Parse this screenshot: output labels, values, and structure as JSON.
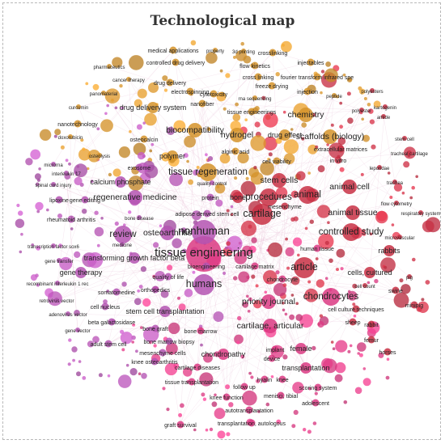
{
  "title": "Technological map",
  "colors": {
    "orange": "#e8a02e",
    "magenta": "#c45ac2",
    "red": "#d9344a",
    "pink": "#ee3f8e",
    "edge": "#e6b9d2",
    "label": "#222222"
  },
  "terms": [
    {
      "label": "tissue engineering",
      "cluster": "pink",
      "weight": 10
    },
    {
      "label": "nonhuman",
      "cluster": "magenta",
      "weight": 8
    },
    {
      "label": "humans",
      "cluster": "magenta",
      "weight": 7
    },
    {
      "label": "article",
      "cluster": "red",
      "weight": 7
    },
    {
      "label": "cartilage",
      "cluster": "red",
      "weight": 7
    },
    {
      "label": "animal",
      "cluster": "red",
      "weight": 6
    },
    {
      "label": "procedures",
      "cluster": "red",
      "weight": 6
    },
    {
      "label": "tissue regeneration",
      "cluster": "orange",
      "weight": 6
    },
    {
      "label": "controlled study",
      "cluster": "red",
      "weight": 6
    },
    {
      "label": "chondrocytes",
      "cluster": "pink",
      "weight": 6
    },
    {
      "label": "review",
      "cluster": "magenta",
      "weight": 6
    },
    {
      "label": "osteoarthritis",
      "cluster": "magenta",
      "weight": 5
    },
    {
      "label": "stem cells",
      "cluster": "red",
      "weight": 5
    },
    {
      "label": "animal cell",
      "cluster": "red",
      "weight": 5
    },
    {
      "label": "animal tissue",
      "cluster": "red",
      "weight": 5
    },
    {
      "label": "chemistry",
      "cluster": "orange",
      "weight": 5
    },
    {
      "label": "hydrogel",
      "cluster": "orange",
      "weight": 5
    },
    {
      "label": "biocompatibility",
      "cluster": "orange",
      "weight": 5
    },
    {
      "label": "scaffolds (biology)",
      "cluster": "orange",
      "weight": 5
    },
    {
      "label": "drug effect",
      "cluster": "orange",
      "weight": 4
    },
    {
      "label": "regenerative medicine",
      "cluster": "magenta",
      "weight": 5
    },
    {
      "label": "priority journal",
      "cluster": "pink",
      "weight": 5
    },
    {
      "label": "cartilage, articular",
      "cluster": "pink",
      "weight": 5
    },
    {
      "label": "female",
      "cluster": "pink",
      "weight": 4
    },
    {
      "label": "chondropathy",
      "cluster": "pink",
      "weight": 4
    },
    {
      "label": "transplantation",
      "cluster": "pink",
      "weight": 4
    },
    {
      "label": "rabbits",
      "cluster": "red",
      "weight": 4
    },
    {
      "label": "cells, cultured",
      "cluster": "red",
      "weight": 4
    },
    {
      "label": "drug delivery system",
      "cluster": "orange",
      "weight": 4
    },
    {
      "label": "bone",
      "cluster": "red",
      "weight": 4
    },
    {
      "label": "gene therapy",
      "cluster": "magenta",
      "weight": 4
    },
    {
      "label": "transforming growth factor beta",
      "cluster": "magenta",
      "weight": 4
    },
    {
      "label": "stem cell transplantation",
      "cluster": "magenta",
      "weight": 4
    },
    {
      "label": "polymer",
      "cluster": "orange",
      "weight": 4
    },
    {
      "label": "cell viability",
      "cluster": "orange",
      "weight": 3
    },
    {
      "label": "calcium phosphate",
      "cluster": "magenta",
      "weight": 4
    },
    {
      "label": "bone marrow",
      "cluster": "pink",
      "weight": 3
    },
    {
      "label": "cartilage diseases",
      "cluster": "pink",
      "weight": 3
    },
    {
      "label": "follow up",
      "cluster": "pink",
      "weight": 3
    },
    {
      "label": "scoring system",
      "cluster": "pink",
      "weight": 3
    },
    {
      "label": "autotransplantation",
      "cluster": "pink",
      "weight": 3
    },
    {
      "label": "transplantation, autologous",
      "cluster": "pink",
      "weight": 3
    },
    {
      "label": "menisci, tibial",
      "cluster": "pink",
      "weight": 3
    },
    {
      "label": "implant",
      "cluster": "pink",
      "weight": 3
    },
    {
      "label": "human tissue",
      "cluster": "pink",
      "weight": 3
    },
    {
      "label": "quality of life",
      "cluster": "magenta",
      "weight": 3
    },
    {
      "label": "orthopedics",
      "cluster": "magenta",
      "weight": 3
    },
    {
      "label": "bone graft",
      "cluster": "magenta",
      "weight": 3
    },
    {
      "label": "cell culture techniques",
      "cluster": "red",
      "weight": 3
    },
    {
      "label": "sheep",
      "cluster": "red",
      "weight": 3
    },
    {
      "label": "rabbit",
      "cluster": "red",
      "weight": 3
    },
    {
      "label": "swine",
      "cluster": "red",
      "weight": 3
    },
    {
      "label": "minipig",
      "cluster": "red",
      "weight": 3
    },
    {
      "label": "horses",
      "cluster": "red",
      "weight": 3
    },
    {
      "label": "femur",
      "cluster": "red",
      "weight": 3
    },
    {
      "label": "exosome",
      "cluster": "magenta",
      "weight": 3
    },
    {
      "label": "osteocalcin",
      "cluster": "orange",
      "weight": 3
    },
    {
      "label": "alginic acid",
      "cluster": "orange",
      "weight": 3
    },
    {
      "label": "nanotechnology",
      "cluster": "orange",
      "weight": 3
    },
    {
      "label": "electrospinning",
      "cluster": "orange",
      "weight": 3
    },
    {
      "label": "drug delivery",
      "cluster": "orange",
      "weight": 3
    },
    {
      "label": "controlled drug delivery",
      "cluster": "orange",
      "weight": 3
    },
    {
      "label": "medical applications",
      "cluster": "orange",
      "weight": 3
    },
    {
      "label": "crosslinking",
      "cluster": "orange",
      "weight": 3
    },
    {
      "label": "cross linking",
      "cluster": "orange",
      "weight": 3
    },
    {
      "label": "flow kinetics",
      "cluster": "orange",
      "weight": 3
    },
    {
      "label": "fourier transform infrared spe",
      "cluster": "orange",
      "weight": 3
    },
    {
      "label": "injectables",
      "cluster": "orange",
      "weight": 3
    },
    {
      "label": "freeze drying",
      "cluster": "orange",
      "weight": 3
    },
    {
      "label": "injection",
      "cluster": "orange",
      "weight": 3
    },
    {
      "label": "cytotoxicity",
      "cluster": "orange",
      "weight": 3
    },
    {
      "label": "tissue engineerings",
      "cluster": "orange",
      "weight": 3
    },
    {
      "label": "nanofiber",
      "cluster": "orange",
      "weight": 3
    },
    {
      "label": "extracellular matrices",
      "cluster": "red",
      "weight": 3
    },
    {
      "label": "in vitro",
      "cluster": "red",
      "weight": 3
    },
    {
      "label": "mesenchyme",
      "cluster": "red",
      "weight": 3
    },
    {
      "label": "cartilage matrix",
      "cluster": "pink",
      "weight": 3
    },
    {
      "label": "chondrocyte",
      "cluster": "pink",
      "weight": 3
    },
    {
      "label": "bioengineering",
      "cluster": "magenta",
      "weight": 3
    },
    {
      "label": "adipose derived stem cell",
      "cluster": "magenta",
      "weight": 3
    },
    {
      "label": "protein",
      "cluster": "magenta",
      "weight": 3
    },
    {
      "label": "rheumatoid arthritis",
      "cluster": "magenta",
      "weight": 3
    },
    {
      "label": "lipoxine",
      "cluster": "magenta",
      "weight": 3
    },
    {
      "label": "gene editing",
      "cluster": "magenta",
      "weight": 3
    },
    {
      "label": "somatomedine",
      "cluster": "magenta",
      "weight": 3
    },
    {
      "label": "cell nucleus",
      "cluster": "magenta",
      "weight": 3
    },
    {
      "label": "beta galactosidase",
      "cluster": "magenta",
      "weight": 3
    },
    {
      "label": "adult stem cell",
      "cluster": "magenta",
      "weight": 3
    },
    {
      "label": "mesenchyme cells",
      "cluster": "magenta",
      "weight": 3
    },
    {
      "label": "knee osteoarthritis",
      "cluster": "magenta",
      "weight": 3
    },
    {
      "label": "bone marrow biopsy",
      "cluster": "magenta",
      "weight": 3
    },
    {
      "label": "knee function",
      "cluster": "pink",
      "weight": 3
    },
    {
      "label": "graft survival",
      "cluster": "pink",
      "weight": 3
    },
    {
      "label": "tissue transplantation",
      "cluster": "pink",
      "weight": 3
    },
    {
      "label": "adolescent",
      "cluster": "pink",
      "weight": 3
    },
    {
      "label": "knee",
      "cluster": "pink",
      "weight": 3
    },
    {
      "label": "hyalin",
      "cluster": "pink",
      "weight": 3
    },
    {
      "label": "device",
      "cluster": "pink",
      "weight": 3
    },
    {
      "label": "pharmaceutics",
      "cluster": "orange",
      "weight": 2
    },
    {
      "label": "cancer therapy",
      "cluster": "orange",
      "weight": 2
    },
    {
      "label": "panomaterial",
      "cluster": "orange",
      "weight": 2
    },
    {
      "label": "curcumin",
      "cluster": "orange",
      "weight": 2
    },
    {
      "label": "doxorubicin",
      "cluster": "orange",
      "weight": 2
    },
    {
      "label": "property",
      "cluster": "orange",
      "weight": 2
    },
    {
      "label": "3d printing",
      "cluster": "orange",
      "weight": 2
    },
    {
      "label": "rna sequencing",
      "cluster": "orange",
      "weight": 2
    },
    {
      "label": "peptide",
      "cluster": "orange",
      "weight": 2
    },
    {
      "label": "polyester",
      "cluster": "red",
      "weight": 2
    },
    {
      "label": "polyesters",
      "cluster": "red",
      "weight": 2
    },
    {
      "label": "kartogenin",
      "cluster": "red",
      "weight": 2
    },
    {
      "label": "amide",
      "cluster": "red",
      "weight": 2
    },
    {
      "label": "stem cell",
      "cluster": "red",
      "weight": 2
    },
    {
      "label": "tracheal cartilage",
      "cluster": "red",
      "weight": 2
    },
    {
      "label": "leporidae",
      "cluster": "red",
      "weight": 2
    },
    {
      "label": "trachea",
      "cluster": "red",
      "weight": 2
    },
    {
      "label": "flow cytometry",
      "cluster": "red",
      "weight": 2
    },
    {
      "label": "respiratory system",
      "cluster": "red",
      "weight": 2
    },
    {
      "label": "microvascular",
      "cluster": "red",
      "weight": 2
    },
    {
      "label": "pig",
      "cluster": "red",
      "weight": 2
    },
    {
      "label": "cell count",
      "cluster": "red",
      "weight": 2
    },
    {
      "label": "osteolysis",
      "cluster": "orange",
      "weight": 2
    },
    {
      "label": "microrna",
      "cluster": "magenta",
      "weight": 2
    },
    {
      "label": "interleukin 17",
      "cluster": "magenta",
      "weight": 2
    },
    {
      "label": "spinal cord injury",
      "cluster": "magenta",
      "weight": 2
    },
    {
      "label": "transcription factor sox6",
      "cluster": "magenta",
      "weight": 2
    },
    {
      "label": "gene transfer",
      "cluster": "magenta",
      "weight": 2
    },
    {
      "label": "recombinant interleukin 1 rec",
      "cluster": "magenta",
      "weight": 2
    },
    {
      "label": "retrovirus vector",
      "cluster": "magenta",
      "weight": 2
    },
    {
      "label": "adenovirus vector",
      "cluster": "magenta",
      "weight": 2
    },
    {
      "label": "gene vector",
      "cluster": "magenta",
      "weight": 2
    },
    {
      "label": "bone disease",
      "cluster": "magenta",
      "weight": 2
    },
    {
      "label": "medicine",
      "cluster": "magenta",
      "weight": 2
    },
    {
      "label": "quality control",
      "cluster": "magenta",
      "weight": 2
    }
  ]
}
